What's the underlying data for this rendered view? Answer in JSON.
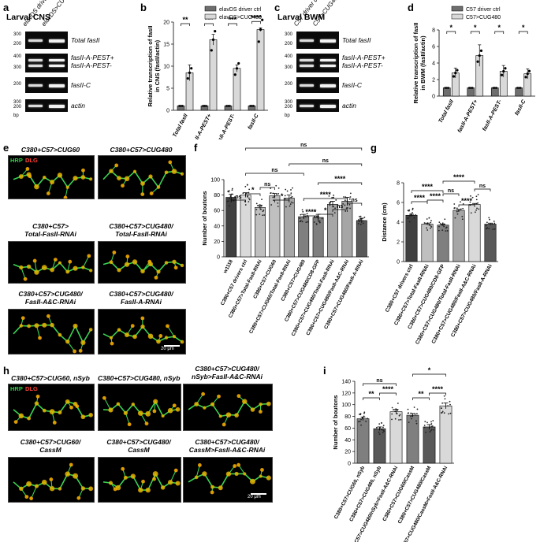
{
  "letters": {
    "a": "a",
    "b": "b",
    "c": "c",
    "d": "d",
    "e": "e",
    "f": "f",
    "g": "g",
    "h": "h",
    "i": "i"
  },
  "panel_a": {
    "title": "Larval CNS",
    "lanes": [
      "elav^DS driver ctrl",
      "elav^DS>CUG480"
    ],
    "rows": [
      {
        "label": "Total fasII",
        "ladder": [
          "300",
          "200"
        ]
      },
      {
        "label": "fasII-A-PEST+\nfasII-A-PEST-",
        "ladder": [
          "400",
          "300"
        ]
      },
      {
        "label": "fasII-C",
        "ladder": [
          "200"
        ]
      },
      {
        "label": "actin",
        "ladder": [
          "300",
          "200"
        ]
      }
    ],
    "bp": "bp"
  },
  "panel_c": {
    "title": "Larval BWM",
    "lanes": [
      "C57 driver ctrl",
      "C57>CUG480"
    ],
    "rows": [
      {
        "label": "Total fasII",
        "ladder": [
          "300",
          "200"
        ]
      },
      {
        "label": "fasII-A-PEST+\nfasII-A-PEST-",
        "ladder": [
          "400",
          "300"
        ]
      },
      {
        "label": "fasII-C",
        "ladder": [
          "200"
        ]
      },
      {
        "label": "actin",
        "ladder": [
          "300",
          "200"
        ]
      }
    ],
    "bp": "bp"
  },
  "panel_e": {
    "labels": [
      "C380+C57>CUG60",
      "C380+C57>CUG480",
      "C380+C57>\nTotal-FasII-RNAi",
      "C380+C57>CUG480/\nTotal-FasII-RNAi",
      "C380+C57>CUG480/\nFasII-A&C-RNAi",
      "C380+C57>CUG480/\nFasII-A-RNAi"
    ],
    "stain1": "HRP",
    "stain2": "DLG",
    "scalebar": "20 μm"
  },
  "panel_h": {
    "labels": [
      "C380+C57>CUG60, nSyb",
      "C380+C57>CUG480, nSyb",
      "C380+C57>CUG480/\nnSyb>FasII-A&C-RNAi",
      "C380+C57>CUG60/\nCassM",
      "C380+C57>CUG480/\nCassM",
      "C380+C57>CUG480/\nCassM>FasII-A&C-RNAi"
    ],
    "stain1": "HRP",
    "stain2": "DLG",
    "scalebar": "20 μm"
  },
  "chart_data": [
    {
      "id": "b",
      "type": "bar",
      "ylabel": "Relative transcription of fasII\nin CNS (fasII/actin)",
      "ylim": [
        0,
        20
      ],
      "yticks": [
        0,
        5,
        10,
        15,
        20
      ],
      "categories": [
        "Total fasII",
        "fasII-A-PEST+",
        "fasII-A-PEST-",
        "fasII-C"
      ],
      "series": [
        {
          "name": "elavDS driver ctrl",
          "color": "#6e6e6e",
          "values": [
            1,
            1,
            1,
            1
          ],
          "err": [
            0,
            0,
            0,
            0
          ]
        },
        {
          "name": "elavDS>CUG480",
          "color": "#d9d9d9",
          "values": [
            8.5,
            16.0,
            9.5,
            18.3
          ],
          "err": [
            1.8,
            1.2,
            0.8,
            0.4
          ]
        }
      ],
      "sig": [
        "**",
        "***",
        "***",
        "****"
      ]
    },
    {
      "id": "d",
      "type": "bar",
      "ylabel": "Relative transcription of fasII\nin BWM (fasII/actin)",
      "ylim": [
        0,
        8
      ],
      "yticks": [
        0,
        2,
        4,
        6,
        8
      ],
      "categories": [
        "Total fasII",
        "fasII-A-PEST+",
        "fasII-A-PEST-",
        "fasII-C"
      ],
      "series": [
        {
          "name": "C57 driver ctrl",
          "color": "#6e6e6e",
          "values": [
            1,
            1,
            1,
            1
          ],
          "err": [
            0,
            0,
            0,
            0
          ]
        },
        {
          "name": "C57>CUG480",
          "color": "#d9d9d9",
          "values": [
            2.8,
            4.9,
            3.0,
            2.7
          ],
          "err": [
            0.6,
            1.3,
            0.7,
            0.6
          ]
        }
      ],
      "sig": [
        "*",
        "*",
        "*",
        "*"
      ]
    },
    {
      "id": "f",
      "type": "bar",
      "ylabel": "Number of boutons",
      "ylim": [
        0,
        100
      ],
      "yticks": [
        0,
        20,
        40,
        60,
        80,
        100
      ],
      "categories": [
        "w1118",
        "C380+C57 drivers ctrl",
        "C380+C57>Total-FasII-RNAi",
        "C380+C57>CUG60",
        "C380+C57>CUG60/Total-FasII-RNAi",
        "C380+C57>CUG480",
        "C380+C57>CUG480/CD8-GFP",
        "C380+C57>CUG480/Total-FasII-RNAi",
        "C380+C57>CUG480/FasII-A&C-RNAi",
        "C380+C57>CUG480/FasII-A-RNAi"
      ],
      "values": [
        77,
        80,
        64,
        79,
        76,
        52,
        51,
        68,
        72,
        47
      ],
      "err": [
        4,
        3,
        3,
        3,
        4,
        3,
        4,
        4,
        5,
        3
      ],
      "colors": [
        "#404040",
        "#d9d9d9",
        "#bfbfbf",
        "#bfbfbf",
        "#a6a6a6",
        "#7f7f7f",
        "#7f7f7f",
        "#a6a6a6",
        "#a6a6a6",
        "#595959"
      ],
      "sig": [
        "ns",
        "*",
        "ns",
        "*",
        "ns",
        "****",
        "*",
        "ns",
        "ns",
        "****",
        "****",
        "ns",
        "ns"
      ]
    },
    {
      "id": "g",
      "type": "bar",
      "ylabel": "Distance (cm)",
      "ylim": [
        0,
        8
      ],
      "yticks": [
        0,
        2,
        4,
        6,
        8
      ],
      "categories": [
        "C380+C57 drivers ctrl",
        "C380+C57>Total-FasII-RNAi",
        "C380+C57>CUG480/CD8-GFP",
        "C380+C57>CUG480/Total-FasII-RNAi",
        "C380+C57>CUG480/FasII-A&C-RNAi",
        "C380+C57>CUG480/FasII-A-RNAi"
      ],
      "values": [
        4.7,
        3.8,
        3.7,
        5.2,
        5.8,
        3.8
      ],
      "err": [
        0.1,
        0.1,
        0.1,
        0.1,
        0.1,
        0.1
      ],
      "colors": [
        "#404040",
        "#bfbfbf",
        "#7f7f7f",
        "#a6a6a6",
        "#d9d9d9",
        "#595959"
      ],
      "sig": [
        "****",
        "****",
        "****",
        "ns",
        "****",
        "****",
        "ns"
      ]
    },
    {
      "id": "i",
      "type": "bar",
      "ylabel": "Number of boutons",
      "ylim": [
        0,
        140
      ],
      "yticks": [
        0,
        20,
        40,
        60,
        80,
        100,
        120,
        140
      ],
      "categories": [
        "C380+C57>CUG60, nSyb",
        "C380+C57>CUG480, nSyb",
        "C380+C57>CUG480/nSyb>FasII-A&C-RNAi",
        "C380+C57>CUG60/CassM",
        "C380+C57>CUG480/CassM",
        "C380+C57>CUG480/CassM>FasII-A&C-RNAi"
      ],
      "values": [
        76,
        59,
        88,
        82,
        62,
        98
      ],
      "err": [
        3,
        3,
        4,
        3,
        4,
        5
      ],
      "colors": [
        "#7f7f7f",
        "#595959",
        "#d9d9d9",
        "#7f7f7f",
        "#595959",
        "#d9d9d9"
      ],
      "sig": [
        "ns",
        "**",
        "****",
        "*",
        "**",
        "****"
      ]
    }
  ]
}
